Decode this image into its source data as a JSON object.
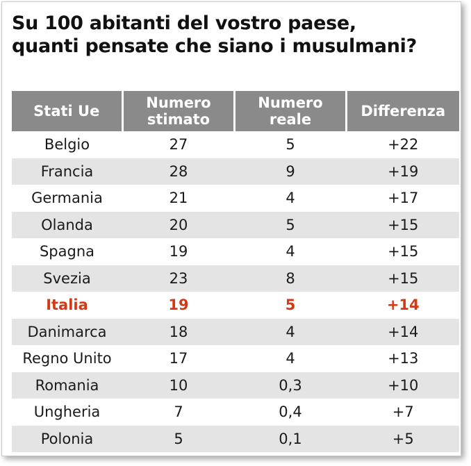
{
  "title_lines": [
    "Su 100 abitanti del vostro paese,",
    "quanti pensate che siano i musulmani?"
  ],
  "colors": {
    "header_bg": "#8a8a8a",
    "alt_row_bg": "#e4e4e4",
    "highlight_text": "#d23a16"
  },
  "chart_data": {
    "type": "table",
    "title": "Su 100 abitanti del vostro paese, quanti pensate che siano i musulmani?",
    "columns": [
      {
        "lines": [
          "Stati Ue"
        ]
      },
      {
        "lines": [
          "Numero",
          "stimato"
        ]
      },
      {
        "lines": [
          "Numero",
          "reale"
        ]
      },
      {
        "lines": [
          "Differenza"
        ]
      }
    ],
    "highlighted_row": "Italia",
    "rows": [
      [
        "Belgio",
        "27",
        "5",
        "+22"
      ],
      [
        "Francia",
        "28",
        "9",
        "+19"
      ],
      [
        "Germania",
        "21",
        "4",
        "+17"
      ],
      [
        "Olanda",
        "20",
        "5",
        "+15"
      ],
      [
        "Spagna",
        "19",
        "4",
        "+15"
      ],
      [
        "Svezia",
        "23",
        "8",
        "+15"
      ],
      [
        "Italia",
        "19",
        "5",
        "+14"
      ],
      [
        "Danimarca",
        "18",
        "4",
        "+14"
      ],
      [
        "Regno Unito",
        "17",
        "4",
        "+13"
      ],
      [
        "Romania",
        "10",
        "0,3",
        "+10"
      ],
      [
        "Ungheria",
        "7",
        "0,4",
        "+7"
      ],
      [
        "Polonia",
        "5",
        "0,1",
        "+5"
      ]
    ]
  }
}
